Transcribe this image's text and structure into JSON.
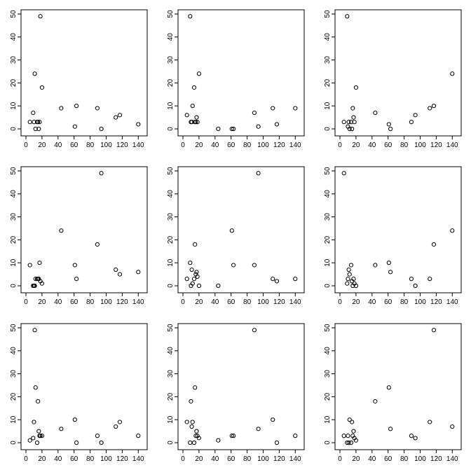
{
  "chart_data": [
    {
      "type": "scatter",
      "title": "",
      "xlabel": "",
      "ylabel": "",
      "xlim": [
        0,
        145
      ],
      "ylim": [
        0,
        50
      ],
      "x": [
        5,
        9,
        10,
        11,
        12,
        14,
        15,
        16,
        17,
        18,
        20,
        44,
        61,
        63,
        89,
        94,
        112,
        117,
        140
      ],
      "y": [
        3,
        7,
        3,
        24,
        0,
        3,
        3,
        0,
        3,
        49,
        18,
        9,
        1,
        10,
        9,
        0,
        5,
        6,
        2
      ],
      "xticks": [
        "0",
        "20",
        "40",
        "60",
        "80",
        "100",
        "120",
        "140"
      ],
      "yticks": [
        "0",
        "10",
        "20",
        "30",
        "40",
        "50"
      ]
    },
    {
      "type": "scatter",
      "title": "",
      "xlabel": "",
      "ylabel": "",
      "xlim": [
        0,
        145
      ],
      "ylim": [
        0,
        50
      ],
      "x": [
        5,
        9,
        10,
        11,
        12,
        14,
        15,
        16,
        17,
        18,
        20,
        44,
        61,
        63,
        89,
        94,
        112,
        117,
        140
      ],
      "y": [
        6,
        49,
        3,
        3,
        10,
        18,
        3,
        3,
        5,
        3,
        24,
        0,
        0,
        0,
        7,
        1,
        9,
        2,
        9
      ],
      "xticks": [
        "0",
        "20",
        "40",
        "60",
        "80",
        "100",
        "120",
        "140"
      ],
      "yticks": [
        "0",
        "10",
        "20",
        "30",
        "40",
        "50"
      ]
    },
    {
      "type": "scatter",
      "title": "",
      "xlabel": "",
      "ylabel": "",
      "xlim": [
        0,
        145
      ],
      "ylim": [
        0,
        50
      ],
      "x": [
        5,
        9,
        10,
        11,
        12,
        14,
        15,
        16,
        17,
        18,
        20,
        44,
        61,
        63,
        89,
        94,
        112,
        117,
        140
      ],
      "y": [
        3,
        49,
        1,
        3,
        0,
        3,
        0,
        9,
        5,
        3,
        18,
        7,
        2,
        0,
        3,
        6,
        9,
        10,
        24
      ],
      "xticks": [
        "0",
        "20",
        "40",
        "60",
        "80",
        "100",
        "120",
        "140"
      ],
      "yticks": [
        "0",
        "10",
        "20",
        "30",
        "40",
        "50"
      ]
    },
    {
      "type": "scatter",
      "title": "",
      "xlabel": "",
      "ylabel": "",
      "xlim": [
        0,
        145
      ],
      "ylim": [
        0,
        50
      ],
      "x": [
        5,
        9,
        10,
        11,
        12,
        14,
        15,
        16,
        17,
        18,
        20,
        44,
        61,
        63,
        89,
        94,
        112,
        117,
        140
      ],
      "y": [
        9,
        0,
        0,
        0,
        3,
        3,
        3,
        3,
        10,
        2,
        1,
        24,
        9,
        3,
        18,
        49,
        7,
        5,
        6
      ],
      "xticks": [
        "0",
        "20",
        "40",
        "60",
        "80",
        "100",
        "120",
        "140"
      ],
      "yticks": [
        "0",
        "10",
        "20",
        "30",
        "40",
        "50"
      ]
    },
    {
      "type": "scatter",
      "title": "",
      "xlabel": "",
      "ylabel": "",
      "xlim": [
        0,
        145
      ],
      "ylim": [
        0,
        50
      ],
      "x": [
        5,
        9,
        10,
        11,
        12,
        14,
        15,
        16,
        17,
        18,
        20,
        44,
        61,
        63,
        89,
        94,
        112,
        117,
        140
      ],
      "y": [
        3,
        10,
        0,
        7,
        1,
        3,
        18,
        5,
        6,
        4,
        0,
        0,
        24,
        9,
        9,
        49,
        3,
        2,
        3
      ],
      "xticks": [
        "0",
        "20",
        "40",
        "60",
        "80",
        "100",
        "120",
        "140"
      ],
      "yticks": [
        "0",
        "10",
        "20",
        "30",
        "40",
        "50"
      ]
    },
    {
      "type": "scatter",
      "title": "",
      "xlabel": "",
      "ylabel": "",
      "xlim": [
        0,
        145
      ],
      "ylim": [
        0,
        50
      ],
      "x": [
        5,
        9,
        10,
        11,
        12,
        14,
        15,
        16,
        17,
        18,
        20,
        44,
        61,
        63,
        89,
        94,
        112,
        117,
        140
      ],
      "y": [
        49,
        1,
        3,
        7,
        5,
        9,
        2,
        0,
        3,
        1,
        0,
        9,
        10,
        6,
        3,
        0,
        3,
        18,
        24
      ],
      "xticks": [
        "0",
        "20",
        "40",
        "60",
        "80",
        "100",
        "120",
        "140"
      ],
      "yticks": [
        "0",
        "10",
        "20",
        "30",
        "40",
        "50"
      ]
    },
    {
      "type": "scatter",
      "title": "",
      "xlabel": "",
      "ylabel": "",
      "xlim": [
        0,
        145
      ],
      "ylim": [
        0,
        50
      ],
      "x": [
        5,
        9,
        10,
        11,
        12,
        14,
        15,
        16,
        17,
        18,
        20,
        44,
        61,
        63,
        89,
        94,
        112,
        117,
        140
      ],
      "y": [
        1,
        2,
        9,
        49,
        24,
        0,
        18,
        5,
        3,
        3,
        3,
        6,
        10,
        0,
        3,
        0,
        7,
        9,
        3
      ],
      "xticks": [
        "0",
        "20",
        "40",
        "60",
        "80",
        "100",
        "120",
        "140"
      ],
      "yticks": [
        "0",
        "10",
        "20",
        "30",
        "40",
        "50"
      ]
    },
    {
      "type": "scatter",
      "title": "",
      "xlabel": "",
      "ylabel": "",
      "xlim": [
        0,
        145
      ],
      "ylim": [
        0,
        50
      ],
      "x": [
        5,
        9,
        10,
        11,
        12,
        14,
        15,
        16,
        17,
        18,
        20,
        44,
        61,
        63,
        89,
        94,
        112,
        117,
        140
      ],
      "y": [
        9,
        0,
        18,
        7,
        9,
        0,
        24,
        3,
        5,
        3,
        2,
        1,
        3,
        3,
        49,
        6,
        10,
        0,
        3
      ],
      "xticks": [
        "0",
        "20",
        "40",
        "60",
        "80",
        "100",
        "120",
        "140"
      ],
      "yticks": [
        "0",
        "10",
        "20",
        "30",
        "40",
        "50"
      ]
    },
    {
      "type": "scatter",
      "title": "",
      "xlabel": "",
      "ylabel": "",
      "xlim": [
        0,
        145
      ],
      "ylim": [
        0,
        50
      ],
      "x": [
        5,
        9,
        10,
        11,
        12,
        14,
        15,
        16,
        17,
        18,
        20,
        44,
        61,
        63,
        89,
        94,
        112,
        117,
        140
      ],
      "y": [
        3,
        0,
        3,
        0,
        10,
        0,
        9,
        3,
        5,
        2,
        1,
        18,
        24,
        6,
        3,
        2,
        9,
        49,
        7
      ],
      "xticks": [
        "0",
        "20",
        "40",
        "60",
        "80",
        "100",
        "120",
        "140"
      ],
      "yticks": [
        "0",
        "10",
        "20",
        "30",
        "40",
        "50"
      ]
    }
  ]
}
